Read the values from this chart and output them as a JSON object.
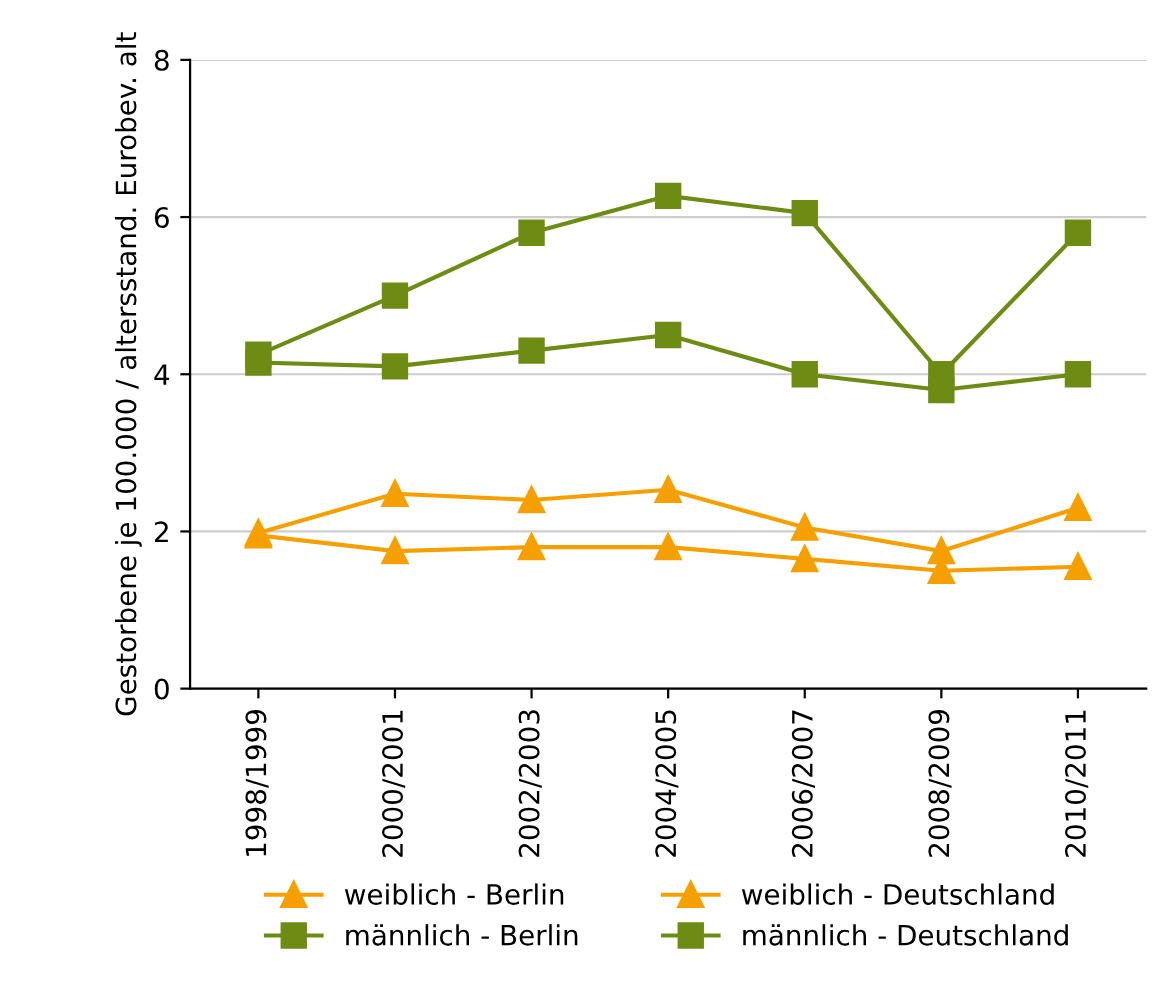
{
  "chart_data": {
    "type": "line",
    "ylabel": "Gestorbene je 100.000 / altersstand. Eurobev. alt",
    "categories": [
      "1998/1999",
      "2000/2001",
      "2002/2003",
      "2004/2005",
      "2006/2007",
      "2008/2009",
      "2010/2011"
    ],
    "ylim": [
      0,
      8
    ],
    "yticks": [
      0,
      2,
      4,
      6,
      8
    ],
    "grid": "y",
    "legend": "bottom",
    "series": [
      {
        "name": "weiblich - Berlin",
        "color": "#f5a000",
        "marker": "triangle",
        "values": [
          1.98,
          2.48,
          2.4,
          2.53,
          2.05,
          1.75,
          2.3
        ]
      },
      {
        "name": "männlich - Berlin",
        "color": "#6e8c14",
        "marker": "square",
        "values": [
          4.25,
          5.0,
          5.8,
          6.27,
          6.05,
          4.0,
          5.8
        ]
      },
      {
        "name": "weiblich - Deutschland",
        "color": "#f5a000",
        "marker": "triangle",
        "values": [
          1.95,
          1.75,
          1.8,
          1.8,
          1.65,
          1.5,
          1.55
        ]
      },
      {
        "name": "männlich - Deutschland",
        "color": "#6e8c14",
        "marker": "square",
        "values": [
          4.15,
          4.1,
          4.3,
          4.5,
          4.0,
          3.8,
          4.0
        ]
      }
    ]
  }
}
